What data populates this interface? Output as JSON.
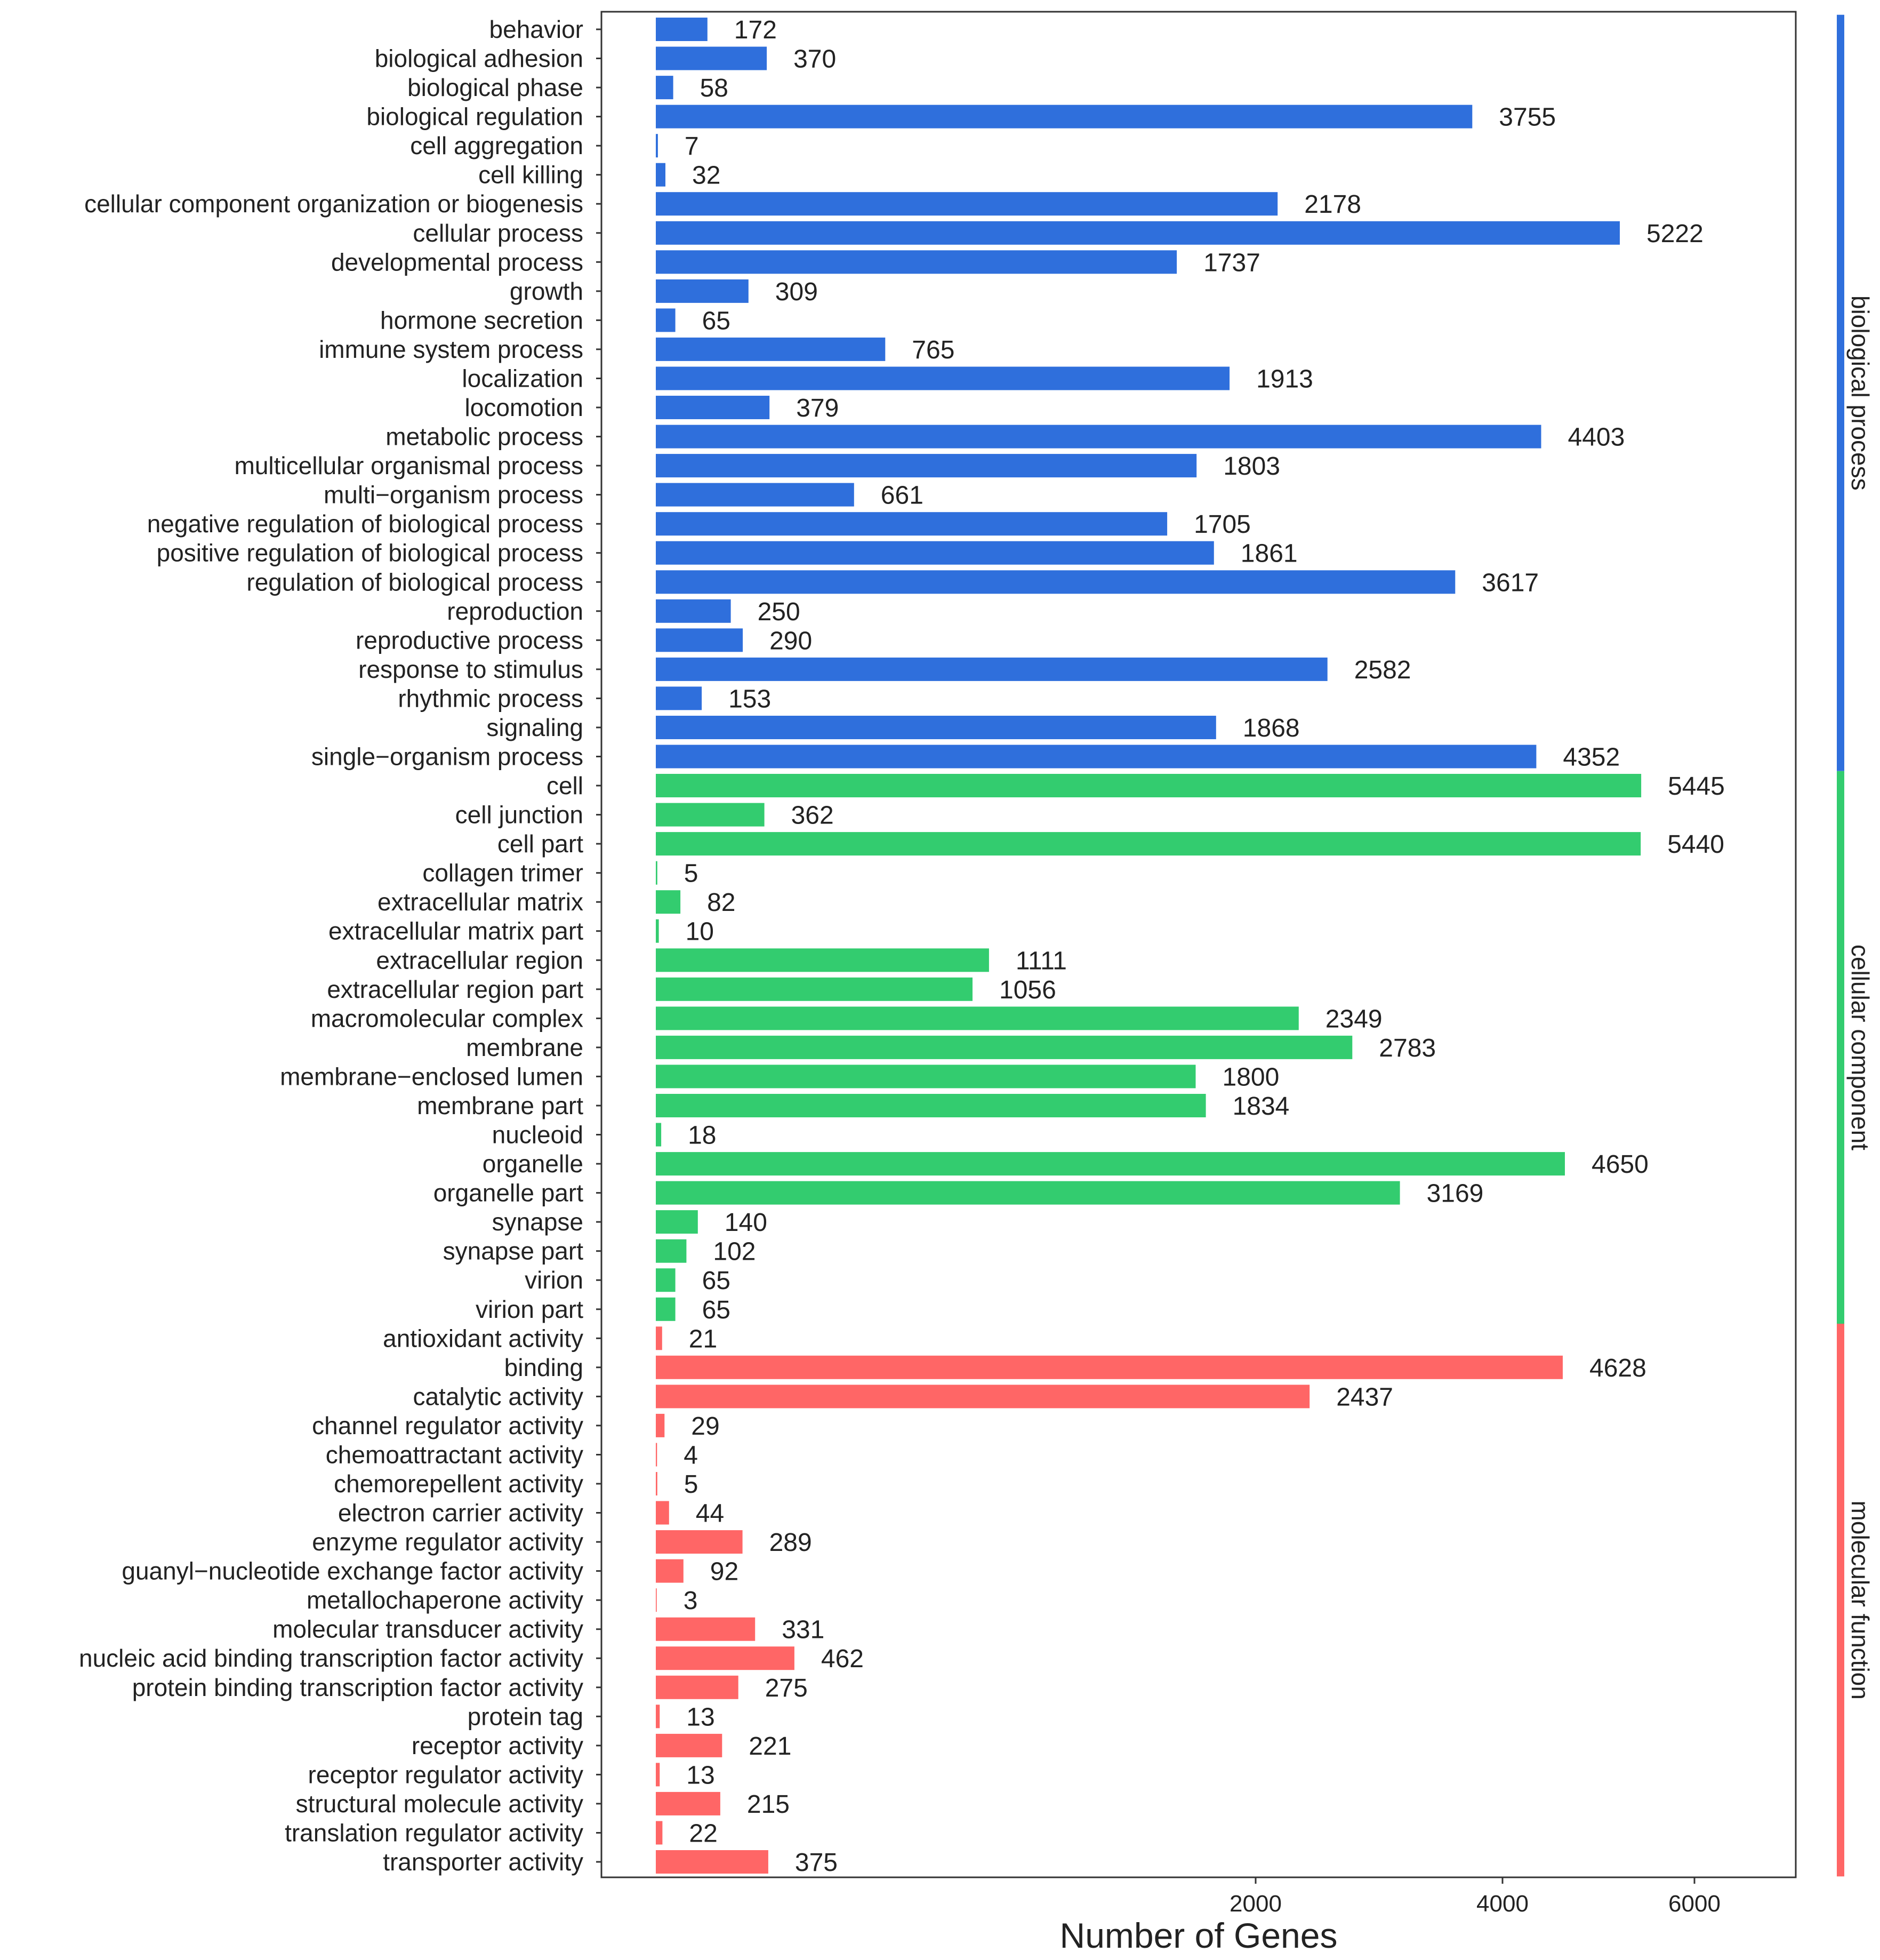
{
  "chart_data": {
    "type": "bar",
    "orientation": "horizontal",
    "xlabel": "Number of Genes",
    "ylabel": "",
    "title": "",
    "x_ticks": [
      "2000",
      "4000",
      "6000"
    ],
    "groups": [
      {
        "name": "biological process",
        "color": "#2f6fdc",
        "items": [
          {
            "label": "behavior",
            "value": 172
          },
          {
            "label": "biological adhesion",
            "value": 370
          },
          {
            "label": "biological phase",
            "value": 58
          },
          {
            "label": "biological regulation",
            "value": 3755
          },
          {
            "label": "cell aggregation",
            "value": 7
          },
          {
            "label": "cell killing",
            "value": 32
          },
          {
            "label": "cellular component organization or biogenesis",
            "value": 2178
          },
          {
            "label": "cellular process",
            "value": 5222
          },
          {
            "label": "developmental process",
            "value": 1737
          },
          {
            "label": "growth",
            "value": 309
          },
          {
            "label": "hormone secretion",
            "value": 65
          },
          {
            "label": "immune system process",
            "value": 765
          },
          {
            "label": "localization",
            "value": 1913
          },
          {
            "label": "locomotion",
            "value": 379
          },
          {
            "label": "metabolic process",
            "value": 4403
          },
          {
            "label": "multicellular organismal process",
            "value": 1803
          },
          {
            "label": "multi−organism process",
            "value": 661
          },
          {
            "label": "negative regulation of biological process",
            "value": 1705
          },
          {
            "label": "positive regulation of biological process",
            "value": 1861
          },
          {
            "label": "regulation of biological process",
            "value": 3617
          },
          {
            "label": "reproduction",
            "value": 250
          },
          {
            "label": "reproductive process",
            "value": 290
          },
          {
            "label": "response to stimulus",
            "value": 2582
          },
          {
            "label": "rhythmic process",
            "value": 153
          },
          {
            "label": "signaling",
            "value": 1868
          },
          {
            "label": "single−organism process",
            "value": 4352
          }
        ]
      },
      {
        "name": "cellular component",
        "color": "#33cc6f",
        "items": [
          {
            "label": "cell",
            "value": 5445
          },
          {
            "label": "cell junction",
            "value": 362
          },
          {
            "label": "cell part",
            "value": 5440
          },
          {
            "label": "collagen trimer",
            "value": 5
          },
          {
            "label": "extracellular matrix",
            "value": 82
          },
          {
            "label": "extracellular matrix part",
            "value": 10
          },
          {
            "label": "extracellular region",
            "value": 1111
          },
          {
            "label": "extracellular region part",
            "value": 1056
          },
          {
            "label": "macromolecular complex",
            "value": 2349
          },
          {
            "label": "membrane",
            "value": 2783
          },
          {
            "label": "membrane−enclosed lumen",
            "value": 1800
          },
          {
            "label": "membrane part",
            "value": 1834
          },
          {
            "label": "nucleoid",
            "value": 18
          },
          {
            "label": "organelle",
            "value": 4650
          },
          {
            "label": "organelle part",
            "value": 3169
          },
          {
            "label": "synapse",
            "value": 140
          },
          {
            "label": "synapse part",
            "value": 102
          },
          {
            "label": "virion",
            "value": 65
          },
          {
            "label": "virion part",
            "value": 65
          }
        ]
      },
      {
        "name": "molecular function",
        "color": "#ff6666",
        "items": [
          {
            "label": "antioxidant activity",
            "value": 21
          },
          {
            "label": "binding",
            "value": 4628
          },
          {
            "label": "catalytic activity",
            "value": 2437
          },
          {
            "label": "channel regulator activity",
            "value": 29
          },
          {
            "label": "chemoattractant activity",
            "value": 4
          },
          {
            "label": "chemorepellent activity",
            "value": 5
          },
          {
            "label": "electron carrier activity",
            "value": 44
          },
          {
            "label": "enzyme regulator activity",
            "value": 289
          },
          {
            "label": "guanyl−nucleotide exchange factor activity",
            "value": 92
          },
          {
            "label": "metallochaperone activity",
            "value": 3
          },
          {
            "label": "molecular transducer activity",
            "value": 331
          },
          {
            "label": "nucleic acid binding transcription factor activity",
            "value": 462
          },
          {
            "label": "protein binding transcription factor activity",
            "value": 275
          },
          {
            "label": "protein tag",
            "value": 13
          },
          {
            "label": "receptor activity",
            "value": 221
          },
          {
            "label": "receptor regulator activity",
            "value": 13
          },
          {
            "label": "structural molecule activity",
            "value": 215
          },
          {
            "label": "translation regulator activity",
            "value": 22
          },
          {
            "label": "transporter activity",
            "value": 375
          }
        ]
      }
    ]
  }
}
